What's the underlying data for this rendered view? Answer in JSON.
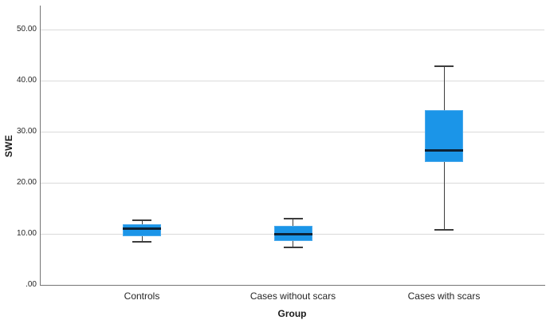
{
  "chart_data": {
    "type": "boxplot",
    "title": "",
    "xlabel": "Group",
    "ylabel": "SWE",
    "categories": [
      "Controls",
      "Cases without scars",
      "Cases with scars"
    ],
    "y_ticks": [
      ".00",
      "10.00",
      "20.00",
      "30.00",
      "40.00",
      "50.00"
    ],
    "y_tick_values": [
      0,
      10,
      20,
      30,
      40,
      50
    ],
    "ylim": [
      0,
      54.7
    ],
    "grid": true,
    "legend": "none",
    "series": [
      {
        "name": "Controls",
        "whisker_low": 8.4,
        "q1": 9.5,
        "median": 11.0,
        "q3": 11.9,
        "whisker_high": 12.7
      },
      {
        "name": "Cases without scars",
        "whisker_low": 7.3,
        "q1": 8.6,
        "median": 10.0,
        "q3": 11.6,
        "whisker_high": 13.0
      },
      {
        "name": "Cases with scars",
        "whisker_low": 10.8,
        "q1": 24.1,
        "median": 26.3,
        "q3": 34.2,
        "whisker_high": 42.8
      }
    ],
    "colors": {
      "box_fill": "#1b95e8",
      "box_border": "#4aa9ec",
      "median": "#0d2236",
      "whisker": "#3d3d3d",
      "grid": "#dadada",
      "axis": "#757575",
      "text": "#262626",
      "background": "#ffffff"
    }
  }
}
